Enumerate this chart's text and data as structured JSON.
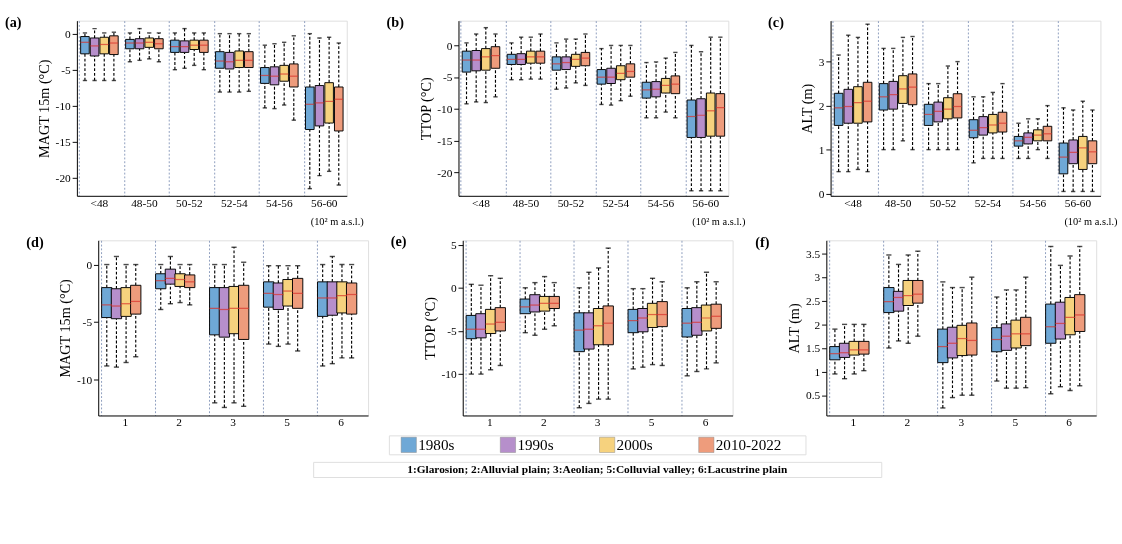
{
  "chart_data": [
    {
      "type": "box",
      "title": "(a)",
      "ylabel": "MAGT 15m (°C)",
      "categories": [
        "<48",
        "48-50",
        "50-52",
        "52-54",
        "54-56",
        "56-60"
      ],
      "ylim": [
        -22.5,
        1.8
      ],
      "yticks": [
        -20,
        -15,
        -10,
        -5,
        0
      ],
      "grid": "x",
      "legend": "bottom",
      "annotations": [
        "(10² m a.s.l.)"
      ],
      "series": [
        {
          "name": "1980s",
          "color": "#6fa8d6",
          "boxes": [
            {
              "low": -6.5,
              "q1": -2.8,
              "median": -1.2,
              "q3": -0.4,
              "high": 0.1
            },
            {
              "low": -3.9,
              "q1": -2.1,
              "median": -1.3,
              "q3": -0.8,
              "high": 0.1
            },
            {
              "low": -5.0,
              "q1": -2.6,
              "median": -1.8,
              "q3": -0.9,
              "high": 0.1
            },
            {
              "low": -8.1,
              "q1": -4.8,
              "median": -3.8,
              "q3": -2.5,
              "high": 0
            },
            {
              "low": -10.3,
              "q1": -6.9,
              "median": -5.8,
              "q3": -4.7,
              "high": -1.6
            },
            {
              "low": -21.5,
              "q1": -13.3,
              "median": -9.8,
              "q3": -7.4,
              "high": 0
            }
          ]
        },
        {
          "name": "1990s",
          "color": "#b68fcb",
          "boxes": [
            {
              "low": -6.5,
              "q1": -3.1,
              "median": -1.7,
              "q3": -0.6,
              "high": 0.7
            },
            {
              "low": -3.7,
              "q1": -2.1,
              "median": -1.3,
              "q3": -0.7,
              "high": 0.7
            },
            {
              "low": -4.8,
              "q1": -2.6,
              "median": -1.8,
              "q3": -1.0,
              "high": 0.7
            },
            {
              "low": -8.1,
              "q1": -4.9,
              "median": -3.9,
              "q3": -2.6,
              "high": 0
            },
            {
              "low": -10.4,
              "q1": -7.1,
              "median": -5.9,
              "q3": -4.6,
              "high": -1.4
            },
            {
              "low": -19.7,
              "q1": -12.8,
              "median": -9.6,
              "q3": -7.2,
              "high": -0.6
            }
          ]
        },
        {
          "name": "2000s",
          "color": "#f6d27e",
          "boxes": [
            {
              "low": -6.5,
              "q1": -2.8,
              "median": -1.5,
              "q3": -0.5,
              "high": 0.1
            },
            {
              "low": -3.5,
              "q1": -1.9,
              "median": -1.2,
              "q3": -0.6,
              "high": 0.1
            },
            {
              "low": -4.4,
              "q1": -2.2,
              "median": -1.6,
              "q3": -0.9,
              "high": 0.1
            },
            {
              "low": -8.1,
              "q1": -4.7,
              "median": -3.7,
              "q3": -2.4,
              "high": 0
            },
            {
              "low": -9.9,
              "q1": -6.6,
              "median": -5.6,
              "q3": -4.4,
              "high": -1.2
            },
            {
              "low": -19.1,
              "q1": -12.4,
              "median": -9.4,
              "q3": -6.8,
              "high": -0.5
            }
          ]
        },
        {
          "name": "2010-2022",
          "color": "#ee9c7c",
          "boxes": [
            {
              "low": -6.5,
              "q1": -2.9,
              "median": -1.3,
              "q3": -0.3,
              "high": 0.2
            },
            {
              "low": -3.9,
              "q1": -2.1,
              "median": -1.4,
              "q3": -0.7,
              "high": 0.1
            },
            {
              "low": -5.0,
              "q1": -2.6,
              "median": -1.6,
              "q3": -0.9,
              "high": 0.1
            },
            {
              "low": -8.0,
              "q1": -4.7,
              "median": -3.7,
              "q3": -2.5,
              "high": 0
            },
            {
              "low": -12.0,
              "q1": -7.4,
              "median": -5.9,
              "q3": -4.2,
              "high": -0.3
            },
            {
              "low": -21.0,
              "q1": -13.5,
              "median": -9.1,
              "q3": -7.4,
              "high": -1.3
            }
          ]
        }
      ]
    },
    {
      "type": "box",
      "title": "(b)",
      "ylabel": "TTOP (°C)",
      "categories": [
        "<48",
        "48-50",
        "50-52",
        "52-54",
        "54-56",
        "56-60"
      ],
      "ylim": [
        -23.7,
        3.9
      ],
      "yticks": [
        -20,
        -15,
        -10,
        -5,
        0
      ],
      "grid": "x",
      "annotations": [
        "(10² m a.s.l.)"
      ],
      "series": [
        {
          "name": "1980s",
          "color": "#6fa8d6",
          "boxes": [
            {
              "low": -9.2,
              "q1": -4.2,
              "median": -2.3,
              "q3": -0.9,
              "high": 0.4
            },
            {
              "low": -5.4,
              "q1": -3.0,
              "median": -2.2,
              "q3": -1.4,
              "high": 0.4
            },
            {
              "low": -6.9,
              "q1": -3.9,
              "median": -2.9,
              "q3": -1.8,
              "high": 0.4
            },
            {
              "low": -9.3,
              "q1": -6.1,
              "median": -5.0,
              "q3": -3.8,
              "high": -0.5
            },
            {
              "low": -11.4,
              "q1": -8.3,
              "median": -7.0,
              "q3": -5.8,
              "high": -2.7
            },
            {
              "low": -22.9,
              "q1": -14.5,
              "median": -11.2,
              "q3": -8.6,
              "high": 0
            }
          ]
        },
        {
          "name": "1990s",
          "color": "#b68fcb",
          "boxes": [
            {
              "low": -8.9,
              "q1": -4.0,
              "median": -2.3,
              "q3": -0.8,
              "high": 1.8
            },
            {
              "low": -5.4,
              "q1": -3.0,
              "median": -2.2,
              "q3": -1.3,
              "high": 1.3
            },
            {
              "low": -6.7,
              "q1": -3.8,
              "median": -2.7,
              "q3": -1.8,
              "high": 1.0
            },
            {
              "low": -9.4,
              "q1": -6.0,
              "median": -5.0,
              "q3": -3.6,
              "high": 0
            },
            {
              "low": -11.4,
              "q1": -8.1,
              "median": -6.9,
              "q3": -5.7,
              "high": -2.6
            },
            {
              "low": -22.9,
              "q1": -14.5,
              "median": -11.0,
              "q3": -8.4,
              "high": -1.0
            }
          ]
        },
        {
          "name": "2000s",
          "color": "#f6d27e",
          "boxes": [
            {
              "low": -9.0,
              "q1": -3.9,
              "median": -1.8,
              "q3": -0.5,
              "high": 2.8
            },
            {
              "low": -5.3,
              "q1": -2.8,
              "median": -1.8,
              "q3": -0.9,
              "high": 1.3
            },
            {
              "low": -5.9,
              "q1": -3.3,
              "median": -2.2,
              "q3": -1.4,
              "high": 1.0
            },
            {
              "low": -8.7,
              "q1": -5.4,
              "median": -4.4,
              "q3": -3.2,
              "high": 0
            },
            {
              "low": -10.5,
              "q1": -7.5,
              "median": -6.3,
              "q3": -5.2,
              "high": -2.0
            },
            {
              "low": -22.9,
              "q1": -14.3,
              "median": -10.3,
              "q3": -7.5,
              "high": 1.3
            }
          ]
        },
        {
          "name": "2010-2022",
          "color": "#ee9c7c",
          "boxes": [
            {
              "low": -8.1,
              "q1": -3.6,
              "median": -1.6,
              "q3": -0.2,
              "high": 1.8
            },
            {
              "low": -5.3,
              "q1": -2.8,
              "median": -1.8,
              "q3": -0.9,
              "high": 1.8
            },
            {
              "low": -6.3,
              "q1": -3.2,
              "median": -2.0,
              "q3": -1.1,
              "high": 1.8
            },
            {
              "low": -8.0,
              "q1": -5.0,
              "median": -4.1,
              "q3": -2.9,
              "high": 0
            },
            {
              "low": -11.4,
              "q1": -7.6,
              "median": -6.1,
              "q3": -4.8,
              "high": -1.1
            },
            {
              "low": -22.9,
              "q1": -14.3,
              "median": -9.8,
              "q3": -7.6,
              "high": 1.3
            }
          ]
        }
      ]
    },
    {
      "type": "box",
      "title": "(c)",
      "ylabel": "ALT (m)",
      "categories": [
        "<48",
        "48-50",
        "50-52",
        "52-54",
        "54-56",
        "56-60"
      ],
      "ylim": [
        -0.05,
        3.93
      ],
      "yticks": [
        0,
        1,
        2,
        3
      ],
      "grid": "x",
      "annotations": [
        "(10² m a.s.l.)"
      ],
      "series": [
        {
          "name": "1980s",
          "color": "#6fa8d6",
          "boxes": [
            {
              "low": 0.5,
              "q1": 1.55,
              "median": 1.95,
              "q3": 2.28,
              "high": 3.15
            },
            {
              "low": 1.0,
              "q1": 1.9,
              "median": 2.2,
              "q3": 2.5,
              "high": 3.3
            },
            {
              "low": 1.0,
              "q1": 1.55,
              "median": 1.8,
              "q3": 2.03,
              "high": 2.5
            },
            {
              "low": 0.7,
              "q1": 1.27,
              "median": 1.44,
              "q3": 1.68,
              "high": 2.2
            },
            {
              "low": 0.8,
              "q1": 1.08,
              "median": 1.2,
              "q3": 1.3,
              "high": 1.6
            },
            {
              "low": 0.05,
              "q1": 0.45,
              "median": 0.83,
              "q3": 1.15,
              "high": 1.95
            }
          ]
        },
        {
          "name": "1990s",
          "color": "#b68fcb",
          "boxes": [
            {
              "low": 0.5,
              "q1": 1.6,
              "median": 1.98,
              "q3": 2.37,
              "high": 3.6
            },
            {
              "low": 1.0,
              "q1": 1.92,
              "median": 2.25,
              "q3": 2.55,
              "high": 3.3
            },
            {
              "low": 1.0,
              "q1": 1.63,
              "median": 1.87,
              "q3": 2.08,
              "high": 2.5
            },
            {
              "low": 0.8,
              "q1": 1.33,
              "median": 1.5,
              "q3": 1.75,
              "high": 2.2
            },
            {
              "low": 0.8,
              "q1": 1.13,
              "median": 1.28,
              "q3": 1.38,
              "high": 1.7
            },
            {
              "low": 0.05,
              "q1": 0.68,
              "median": 0.94,
              "q3": 1.22,
              "high": 1.9
            }
          ]
        },
        {
          "name": "2000s",
          "color": "#f6d27e",
          "boxes": [
            {
              "low": 0.55,
              "q1": 1.6,
              "median": 2.07,
              "q3": 2.43,
              "high": 3.55
            },
            {
              "low": 1.2,
              "q1": 2.05,
              "median": 2.38,
              "q3": 2.68,
              "high": 3.55
            },
            {
              "low": 1.0,
              "q1": 1.7,
              "median": 1.92,
              "q3": 2.18,
              "high": 2.9
            },
            {
              "low": 0.8,
              "q1": 1.38,
              "median": 1.56,
              "q3": 1.8,
              "high": 2.3
            },
            {
              "low": 1.0,
              "q1": 1.2,
              "median": 1.33,
              "q3": 1.45,
              "high": 1.7
            },
            {
              "low": 0.05,
              "q1": 0.55,
              "median": 1.04,
              "q3": 1.3,
              "high": 2.1
            }
          ]
        },
        {
          "name": "2010-2022",
          "color": "#ee9c7c",
          "boxes": [
            {
              "low": 0.5,
              "q1": 1.63,
              "median": 2.1,
              "q3": 2.53,
              "high": 3.85
            },
            {
              "low": 1.0,
              "q1": 2.02,
              "median": 2.42,
              "q3": 2.72,
              "high": 3.57
            },
            {
              "low": 1.0,
              "q1": 1.72,
              "median": 1.98,
              "q3": 2.27,
              "high": 3.0
            },
            {
              "low": 0.8,
              "q1": 1.4,
              "median": 1.6,
              "q3": 1.85,
              "high": 2.5
            },
            {
              "low": 0.8,
              "q1": 1.2,
              "median": 1.36,
              "q3": 1.53,
              "high": 2.0
            },
            {
              "low": 0.05,
              "q1": 0.68,
              "median": 0.95,
              "q3": 1.2,
              "high": 1.9
            }
          ]
        }
      ]
    },
    {
      "type": "box",
      "title": "(d)",
      "ylabel": "MAGT 15m (°C)",
      "categories": [
        "1",
        "2",
        "3",
        "5",
        "6"
      ],
      "ylim": [
        -13.1,
        2.1
      ],
      "yticks": [
        -10,
        -5,
        0
      ],
      "grid": "x",
      "series": [
        {
          "name": "1980s",
          "color": "#6fa8d6",
          "boxes": [
            {
              "low": -8.8,
              "q1": -4.6,
              "median": -3.5,
              "q3": -2.0,
              "high": 0
            },
            {
              "low": -3.9,
              "q1": -2.1,
              "median": -1.4,
              "q3": -0.8,
              "high": 0
            },
            {
              "low": -12.0,
              "q1": -6.1,
              "median": -3.8,
              "q3": -2.0,
              "high": 0
            },
            {
              "low": -6.9,
              "q1": -3.7,
              "median": -2.5,
              "q3": -1.5,
              "high": -0.1
            },
            {
              "low": -8.8,
              "q1": -4.5,
              "median": -2.9,
              "q3": -1.5,
              "high": 0
            }
          ]
        },
        {
          "name": "1990s",
          "color": "#b68fcb",
          "boxes": [
            {
              "low": -8.9,
              "q1": -4.7,
              "median": -3.6,
              "q3": -2.1,
              "high": 0.7
            },
            {
              "low": -3.4,
              "q1": -1.7,
              "median": -1.2,
              "q3": -0.4,
              "high": 0.7
            },
            {
              "low": -12.4,
              "q1": -6.3,
              "median": -3.9,
              "q3": -2.0,
              "high": 0
            },
            {
              "low": -7.1,
              "q1": -3.9,
              "median": -2.6,
              "q3": -1.6,
              "high": -0.1
            },
            {
              "low": -8.6,
              "q1": -4.4,
              "median": -2.9,
              "q3": -1.5,
              "high": 0.7
            }
          ]
        },
        {
          "name": "2000s",
          "color": "#f6d27e",
          "boxes": [
            {
              "low": -8.5,
              "q1": -4.5,
              "median": -3.4,
              "q3": -2.0,
              "high": 0
            },
            {
              "low": -3.3,
              "q1": -1.9,
              "median": -1.3,
              "q3": -0.8,
              "high": 0
            },
            {
              "low": -12.0,
              "q1": -6.0,
              "median": -3.8,
              "q3": -1.9,
              "high": 1.5
            },
            {
              "low": -6.9,
              "q1": -3.6,
              "median": -2.3,
              "q3": -1.3,
              "high": -0.1
            },
            {
              "low": -8.1,
              "q1": -4.2,
              "median": -2.7,
              "q3": -1.5,
              "high": 0
            }
          ]
        },
        {
          "name": "2010-2022",
          "color": "#ee9c7c",
          "boxes": [
            {
              "low": -8.0,
              "q1": -4.3,
              "median": -3.2,
              "q3": -1.8,
              "high": 0
            },
            {
              "low": -3.5,
              "q1": -2.0,
              "median": -1.5,
              "q3": -0.9,
              "high": 0
            },
            {
              "low": -12.3,
              "q1": -6.5,
              "median": -3.8,
              "q3": -1.8,
              "high": 0.2
            },
            {
              "low": -7.5,
              "q1": -3.8,
              "median": -2.5,
              "q3": -1.2,
              "high": -0.1
            },
            {
              "low": -8.1,
              "q1": -4.3,
              "median": -2.6,
              "q3": -1.6,
              "high": 0
            }
          ]
        }
      ]
    },
    {
      "type": "box",
      "title": "(e)",
      "ylabel": "TTOP (°C)",
      "categories": [
        "1",
        "2",
        "3",
        "5",
        "6"
      ],
      "ylim": [
        -14.8,
        5.5
      ],
      "yticks": [
        -10,
        -5,
        0,
        5
      ],
      "grid": "x",
      "annotations": [
        "1:Glarosion; 2:Alluvial plain; 3:Aeolian; 5:Colluvial valley; 6:Lacustrine plain"
      ],
      "series": [
        {
          "name": "1980s",
          "color": "#6fa8d6",
          "boxes": [
            {
              "low": -10.0,
              "q1": -5.9,
              "median": -4.8,
              "q3": -3.2,
              "high": 0.4
            },
            {
              "low": -5.2,
              "q1": -3.0,
              "median": -2.2,
              "q3": -1.3,
              "high": 0
            },
            {
              "low": -13.9,
              "q1": -7.4,
              "median": -4.9,
              "q3": -2.9,
              "high": 0
            },
            {
              "low": -9.4,
              "q1": -5.2,
              "median": -3.8,
              "q3": -2.5,
              "high": -0.1
            },
            {
              "low": -10.2,
              "q1": -5.7,
              "median": -4.1,
              "q3": -2.4,
              "high": 0
            }
          ]
        },
        {
          "name": "1990s",
          "color": "#b68fcb",
          "boxes": [
            {
              "low": -10.0,
              "q1": -5.8,
              "median": -4.8,
              "q3": -3.0,
              "high": 0.3
            },
            {
              "low": -5.5,
              "q1": -2.8,
              "median": -2.0,
              "q3": -0.8,
              "high": 0.6
            },
            {
              "low": -13.4,
              "q1": -7.1,
              "median": -4.8,
              "q3": -2.9,
              "high": 1.8
            },
            {
              "low": -9.2,
              "q1": -5.1,
              "median": -3.5,
              "q3": -2.4,
              "high": -0.1
            },
            {
              "low": -9.7,
              "q1": -5.5,
              "median": -4.0,
              "q3": -2.3,
              "high": 0.7
            }
          ]
        },
        {
          "name": "2000s",
          "color": "#f6d27e",
          "boxes": [
            {
              "low": -9.5,
              "q1": -5.3,
              "median": -4.2,
              "q3": -2.5,
              "high": 1.4
            },
            {
              "low": -4.8,
              "q1": -2.7,
              "median": -1.8,
              "q3": -1.0,
              "high": 1.3
            },
            {
              "low": -12.9,
              "q1": -6.6,
              "median": -4.4,
              "q3": -2.4,
              "high": 2.3
            },
            {
              "low": -8.9,
              "q1": -4.6,
              "median": -3.1,
              "q3": -1.8,
              "high": 1.1
            },
            {
              "low": -9.4,
              "q1": -5.0,
              "median": -3.5,
              "q3": -2.0,
              "high": 1.8
            }
          ]
        },
        {
          "name": "2010-2022",
          "color": "#ee9c7c",
          "boxes": [
            {
              "low": -9.0,
              "q1": -5.0,
              "median": -4.0,
              "q3": -2.3,
              "high": 1.1
            },
            {
              "low": -4.4,
              "q1": -2.4,
              "median": -1.8,
              "q3": -1.0,
              "high": 0.6
            },
            {
              "low": -12.9,
              "q1": -6.6,
              "median": -4.1,
              "q3": -2.1,
              "high": 4.6
            },
            {
              "low": -9.0,
              "q1": -4.5,
              "median": -3.1,
              "q3": -1.6,
              "high": 0.7
            },
            {
              "low": -8.7,
              "q1": -4.7,
              "median": -3.3,
              "q3": -1.9,
              "high": 0.7
            }
          ]
        }
      ]
    },
    {
      "type": "box",
      "title": "(f)",
      "ylabel": "ALT (m)",
      "categories": [
        "1",
        "2",
        "3",
        "5",
        "6"
      ],
      "ylim": [
        0.07,
        3.78
      ],
      "yticks": [
        0.5,
        1,
        1.5,
        2,
        2.5,
        3,
        3.5
      ],
      "grid": "x",
      "series": [
        {
          "name": "1980s",
          "color": "#6fa8d6",
          "boxes": [
            {
              "low": 0.95,
              "q1": 1.25,
              "median": 1.38,
              "q3": 1.53,
              "high": 1.9
            },
            {
              "low": 1.5,
              "q1": 2.25,
              "median": 2.48,
              "q3": 2.78,
              "high": 3.47
            },
            {
              "low": 0.23,
              "q1": 1.19,
              "median": 1.53,
              "q3": 1.9,
              "high": 2.9
            },
            {
              "low": 0.8,
              "q1": 1.42,
              "median": 1.68,
              "q3": 1.93,
              "high": 2.58
            },
            {
              "low": 0.53,
              "q1": 1.6,
              "median": 1.95,
              "q3": 2.43,
              "high": 3.65
            }
          ]
        },
        {
          "name": "1990s",
          "color": "#b68fcb",
          "boxes": [
            {
              "low": 0.85,
              "q1": 1.3,
              "median": 1.4,
              "q3": 1.6,
              "high": 2.0
            },
            {
              "low": 1.65,
              "q1": 2.28,
              "median": 2.57,
              "q3": 2.7,
              "high": 3.27
            },
            {
              "low": 0.45,
              "q1": 1.29,
              "median": 1.6,
              "q3": 1.94,
              "high": 2.78
            },
            {
              "low": 0.65,
              "q1": 1.45,
              "median": 1.75,
              "q3": 2.01,
              "high": 2.73
            },
            {
              "low": 0.68,
              "q1": 1.69,
              "median": 2.02,
              "q3": 2.47,
              "high": 3.25
            }
          ]
        },
        {
          "name": "2000s",
          "color": "#f6d27e",
          "boxes": [
            {
              "low": 0.95,
              "q1": 1.35,
              "median": 1.46,
              "q3": 1.64,
              "high": 2.0
            },
            {
              "low": 1.6,
              "q1": 2.4,
              "median": 2.61,
              "q3": 2.93,
              "high": 3.47
            },
            {
              "low": 0.5,
              "q1": 1.34,
              "median": 1.7,
              "q3": 1.98,
              "high": 2.78
            },
            {
              "low": 0.65,
              "q1": 1.5,
              "median": 1.8,
              "q3": 2.09,
              "high": 2.73
            },
            {
              "low": 0.6,
              "q1": 1.78,
              "median": 2.15,
              "q3": 2.57,
              "high": 3.45
            }
          ]
        },
        {
          "name": "2010-2022",
          "color": "#ee9c7c",
          "boxes": [
            {
              "low": 1.02,
              "q1": 1.37,
              "median": 1.46,
              "q3": 1.64,
              "high": 2.0
            },
            {
              "low": 1.75,
              "q1": 2.45,
              "median": 2.64,
              "q3": 2.93,
              "high": 3.55
            },
            {
              "low": 0.5,
              "q1": 1.35,
              "median": 1.66,
              "q3": 2.03,
              "high": 3.0
            },
            {
              "low": 0.66,
              "q1": 1.55,
              "median": 1.8,
              "q3": 2.15,
              "high": 3.0
            },
            {
              "low": 0.7,
              "q1": 1.85,
              "median": 2.2,
              "q3": 2.63,
              "high": 3.65
            }
          ]
        }
      ]
    }
  ]
}
